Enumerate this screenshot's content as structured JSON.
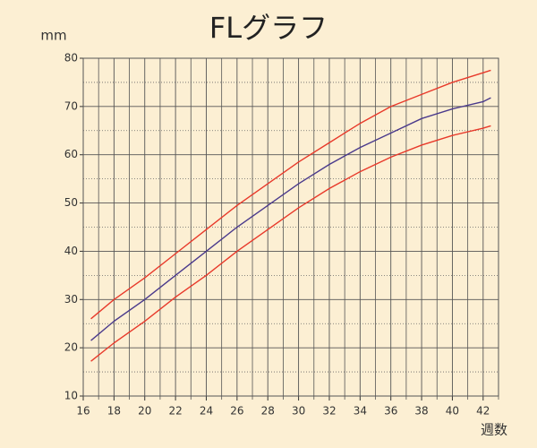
{
  "chart_data": {
    "type": "line",
    "title": "FLグラフ",
    "y_label": "mm",
    "x_label": "週数",
    "x": [
      16.5,
      18,
      20,
      22,
      24,
      26,
      28,
      30,
      32,
      34,
      36,
      38,
      40,
      42,
      42.5
    ],
    "series": [
      {
        "color": "#e8392a",
        "values": [
          26,
          30,
          34.5,
          39.5,
          44.5,
          49.5,
          54,
          58.5,
          62.5,
          66.5,
          70,
          72.5,
          75,
          77,
          77.5
        ]
      },
      {
        "color": "#4a3a8c",
        "values": [
          21.5,
          25.5,
          30,
          35,
          40,
          45,
          49.5,
          54,
          58,
          61.5,
          64.5,
          67.5,
          69.5,
          71,
          71.8
        ]
      },
      {
        "color": "#e8392a",
        "values": [
          17.2,
          21,
          25.5,
          30.5,
          35,
          40,
          44.5,
          49,
          53,
          56.5,
          59.5,
          62,
          64,
          65.5,
          66
        ]
      }
    ],
    "xlim": [
      16,
      43
    ],
    "ylim": [
      10,
      80
    ],
    "xticks": [
      16,
      18,
      20,
      22,
      24,
      26,
      28,
      30,
      32,
      34,
      36,
      38,
      40,
      42
    ],
    "yticks": [
      10,
      20,
      30,
      40,
      50,
      60,
      70,
      80
    ],
    "xminor": [
      17,
      19,
      21,
      23,
      25,
      27,
      29,
      31,
      33,
      35,
      37,
      39,
      41,
      43
    ],
    "yminor": [
      15,
      25,
      35,
      45,
      55,
      65,
      75
    ],
    "grid": true
  }
}
